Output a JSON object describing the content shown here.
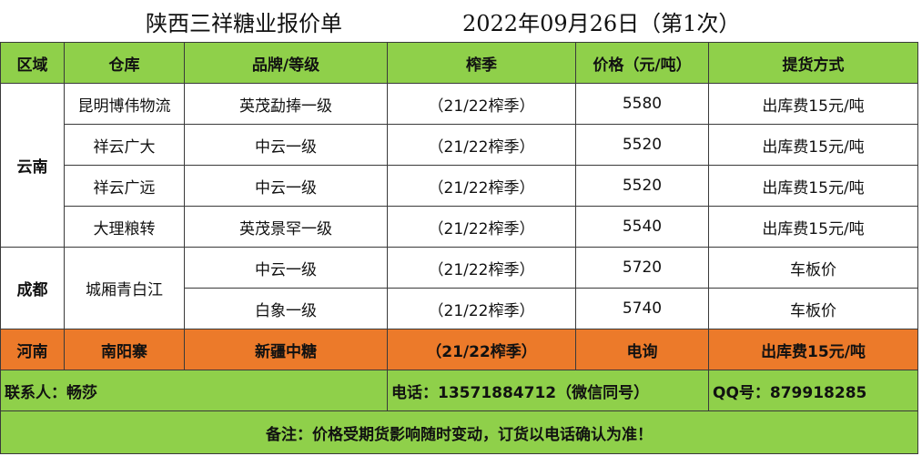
{
  "title": "陕西三祥糖业报价单",
  "date": "2022年09月26日（第1次）",
  "headers": [
    "区域",
    "仓库",
    "品牌/等级",
    "榨季",
    "价格（元/吨）",
    "提货方式"
  ],
  "regions": {
    "yunnan": "云南",
    "chengdu": "成都",
    "henan": "河南"
  },
  "rows": [
    {
      "warehouse": "昆明博伟物流",
      "brand": "英茂勐捧一级",
      "season": "（21/22榨季）",
      "price": "5580",
      "delivery": "出库费15元/吨"
    },
    {
      "warehouse": "祥云广大",
      "brand": "中云一级",
      "season": "（21/22榨季）",
      "price": "5520",
      "delivery": "出库费15元/吨"
    },
    {
      "warehouse": "祥云广远",
      "brand": "中云一级",
      "season": "（21/22榨季）",
      "price": "5520",
      "delivery": "出库费15元/吨"
    },
    {
      "warehouse": "大理粮转",
      "brand": "英茂景罕一级",
      "season": "（21/22榨季）",
      "price": "5540",
      "delivery": "出库费15元/吨"
    },
    {
      "warehouse": "城厢青白江",
      "brand": "中云一级",
      "season": "（21/22榨季）",
      "price": "5720",
      "delivery": "车板价"
    },
    {
      "warehouse": "",
      "brand": "白象一级",
      "season": "（21/22榨季）",
      "price": "5740",
      "delivery": "车板价"
    },
    {
      "warehouse": "南阳寨",
      "brand": "新疆中糖",
      "season": "（21/22榨季）",
      "price": "电询",
      "delivery": "出库费15元/吨"
    }
  ],
  "contact": {
    "person": "联系人：畅莎",
    "phone": "电话：13571884712（微信同号）",
    "qq": "QQ号：879918285"
  },
  "note": "备注：价格受期货影响随时变动，订货以电话确认为准！",
  "colors": {
    "header_green": "#8fd04a",
    "highlight_orange": "#ec7a2a"
  }
}
